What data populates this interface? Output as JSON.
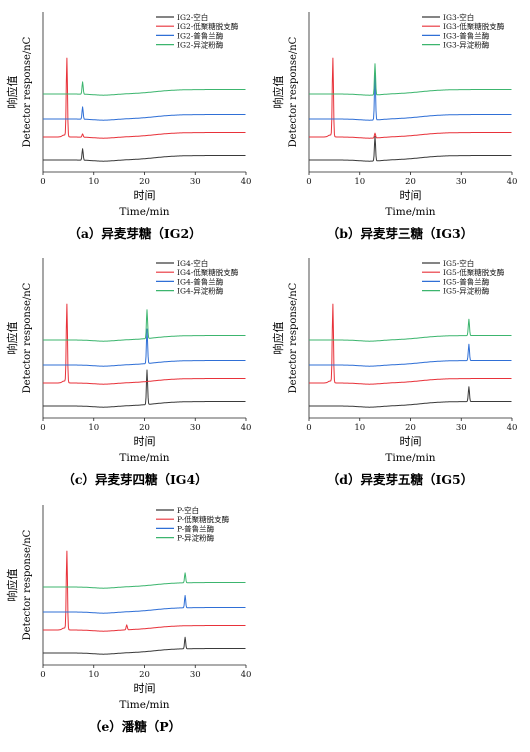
{
  "colors": {
    "blank": "#3a3a3a",
    "low_glycan_debranching": "#e8323a",
    "pullulanase": "#2f6fd6",
    "isoamylase": "#3cb56e"
  },
  "chart_data": [
    {
      "type": "line",
      "caption": "（a）异麦芽糖（IG2）",
      "xlabel_cn": "时间",
      "xlabel_en": "Time/min",
      "ylabel_cn": "响应值",
      "ylabel_en": "Detector response/nC",
      "xlim": [
        0,
        40
      ],
      "xticks": [
        0,
        10,
        20,
        30,
        40
      ],
      "legend_position": "top-right",
      "series": [
        {
          "name": "IG2-空白",
          "color_key": "blank",
          "peaks": [
            {
              "t": 7.8,
              "h": 0.14
            }
          ],
          "solvent": 0
        },
        {
          "name": "IG2-低聚糖脱支酶",
          "color_key": "low_glycan_debranching",
          "peaks": [
            {
              "t": 4.7,
              "h": 0.95
            },
            {
              "t": 7.8,
              "h": 0.04
            }
          ],
          "solvent": 1
        },
        {
          "name": "IG2-普鲁兰酶",
          "color_key": "pullulanase",
          "peaks": [
            {
              "t": 7.8,
              "h": 0.15
            }
          ],
          "solvent": 0
        },
        {
          "name": "IG2-异淀粉酶",
          "color_key": "isoamylase",
          "peaks": [
            {
              "t": 7.8,
              "h": 0.15
            }
          ],
          "solvent": 0
        }
      ]
    },
    {
      "type": "line",
      "caption": "（b）异麦芽三糖（IG3）",
      "xlabel_cn": "时间",
      "xlabel_en": "Time/min",
      "ylabel_cn": "响应值",
      "ylabel_en": "Detector response/nC",
      "xlim": [
        0,
        40
      ],
      "xticks": [
        0,
        10,
        20,
        30,
        40
      ],
      "legend_position": "top-right",
      "series": [
        {
          "name": "IG3-空白",
          "color_key": "blank",
          "peaks": [
            {
              "t": 13,
              "h": 0.3
            }
          ],
          "solvent": 0
        },
        {
          "name": "IG3-低聚糖脱支酶",
          "color_key": "low_glycan_debranching",
          "peaks": [
            {
              "t": 4.7,
              "h": 0.95
            },
            {
              "t": 13,
              "h": 0.06
            }
          ],
          "solvent": 1
        },
        {
          "name": "IG3-普鲁兰酶",
          "color_key": "pullulanase",
          "peaks": [
            {
              "t": 13,
              "h": 0.55
            }
          ],
          "solvent": 0
        },
        {
          "name": "IG3-异淀粉酶",
          "color_key": "isoamylase",
          "peaks": [
            {
              "t": 13,
              "h": 0.38
            }
          ],
          "solvent": 0
        }
      ]
    },
    {
      "type": "line",
      "caption": "（c）异麦芽四糖（IG4）",
      "xlabel_cn": "时间",
      "xlabel_en": "Time/min",
      "ylabel_cn": "响应值",
      "ylabel_en": "Detector response/nC",
      "xlim": [
        0,
        40
      ],
      "xticks": [
        0,
        10,
        20,
        30,
        40
      ],
      "legend_position": "top-right",
      "series": [
        {
          "name": "IG4-空白",
          "color_key": "blank",
          "peaks": [
            {
              "t": 20.5,
              "h": 0.42
            }
          ],
          "solvent": 0
        },
        {
          "name": "IG4-低聚糖脱支酶",
          "color_key": "low_glycan_debranching",
          "peaks": [
            {
              "t": 4.7,
              "h": 0.95
            }
          ],
          "solvent": 1
        },
        {
          "name": "IG4-普鲁兰酶",
          "color_key": "pullulanase",
          "peaks": [
            {
              "t": 20.5,
              "h": 0.42
            }
          ],
          "solvent": 0
        },
        {
          "name": "IG4-异淀粉酶",
          "color_key": "isoamylase",
          "peaks": [
            {
              "t": 20.5,
              "h": 0.35
            }
          ],
          "solvent": 0
        }
      ]
    },
    {
      "type": "line",
      "caption": "（d）异麦芽五糖（IG5）",
      "xlabel_cn": "时间",
      "xlabel_en": "Time/min",
      "ylabel_cn": "响应值",
      "ylabel_en": "Detector response/nC",
      "xlim": [
        0,
        40
      ],
      "xticks": [
        0,
        10,
        20,
        30,
        40
      ],
      "legend_position": "top-right",
      "series": [
        {
          "name": "IG5-空白",
          "color_key": "blank",
          "peaks": [
            {
              "t": 31.5,
              "h": 0.18
            }
          ],
          "solvent": 0
        },
        {
          "name": "IG5-低聚糖脱支酶",
          "color_key": "low_glycan_debranching",
          "peaks": [
            {
              "t": 4.7,
              "h": 0.95
            }
          ],
          "solvent": 1
        },
        {
          "name": "IG5-普鲁兰酶",
          "color_key": "pullulanase",
          "peaks": [
            {
              "t": 31.5,
              "h": 0.2
            }
          ],
          "solvent": 0
        },
        {
          "name": "IG5-异淀粉酶",
          "color_key": "isoamylase",
          "peaks": [
            {
              "t": 31.5,
              "h": 0.2
            }
          ],
          "solvent": 0
        }
      ]
    },
    {
      "type": "line",
      "caption": "（e）潘糖（P）",
      "xlabel_cn": "时间",
      "xlabel_en": "Time/min",
      "ylabel_cn": "响应值",
      "ylabel_en": "Detector response/nC",
      "xlim": [
        0,
        40
      ],
      "xticks": [
        0,
        10,
        20,
        30,
        40
      ],
      "legend_position": "top-right",
      "series": [
        {
          "name": "P-空白",
          "color_key": "blank",
          "peaks": [
            {
              "t": 28,
              "h": 0.14
            }
          ],
          "solvent": 0
        },
        {
          "name": "P-低聚糖脱支酶",
          "color_key": "low_glycan_debranching",
          "peaks": [
            {
              "t": 4.7,
              "h": 0.95
            },
            {
              "t": 16.5,
              "h": 0.06
            }
          ],
          "solvent": 1
        },
        {
          "name": "P-普鲁兰酶",
          "color_key": "pullulanase",
          "peaks": [
            {
              "t": 28,
              "h": 0.15
            }
          ],
          "solvent": 0
        },
        {
          "name": "P-异淀粉酶",
          "color_key": "isoamylase",
          "peaks": [
            {
              "t": 28,
              "h": 0.12
            }
          ],
          "solvent": 0
        }
      ]
    }
  ]
}
